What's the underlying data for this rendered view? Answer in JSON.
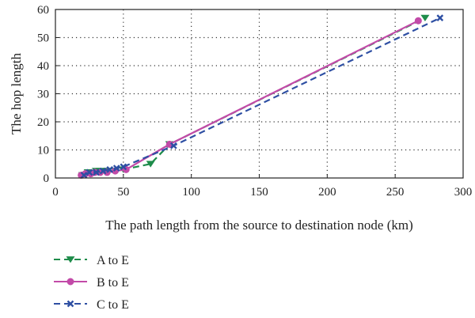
{
  "chart_data": {
    "type": "line",
    "title": "",
    "xlabel": "The path length from the source to destination node (km)",
    "ylabel": "The hop length",
    "xlim": [
      0,
      300
    ],
    "ylim": [
      0,
      60
    ],
    "xticks": [
      0,
      50,
      100,
      150,
      200,
      250,
      300
    ],
    "yticks": [
      0,
      10,
      20,
      30,
      40,
      50,
      60
    ],
    "grid": true,
    "legend_position": "bottom-left",
    "series": [
      {
        "name": "A to E",
        "color": "#1e8c4a",
        "dash": "dashed",
        "marker": "triangle-down",
        "x": [
          20,
          24,
          30,
          33,
          38,
          44,
          50,
          70,
          84,
          272
        ],
        "y": [
          1,
          2,
          2.5,
          2.5,
          2.5,
          2.5,
          3,
          5,
          12,
          57
        ]
      },
      {
        "name": "B to E",
        "color": "#c24aa8",
        "dash": "solid",
        "marker": "circle",
        "x": [
          19,
          22,
          26,
          29,
          33,
          38,
          44,
          52,
          84,
          267
        ],
        "y": [
          1,
          1.5,
          1.5,
          2,
          2,
          2,
          2.5,
          3,
          12,
          56
        ]
      },
      {
        "name": "C to E",
        "color": "#2e4fa3",
        "dash": "dashed",
        "marker": "x",
        "x": [
          21,
          25,
          30,
          35,
          40,
          45,
          50,
          87,
          283
        ],
        "y": [
          1,
          2,
          2,
          2.5,
          3,
          3.5,
          4,
          11.5,
          57
        ]
      }
    ]
  }
}
